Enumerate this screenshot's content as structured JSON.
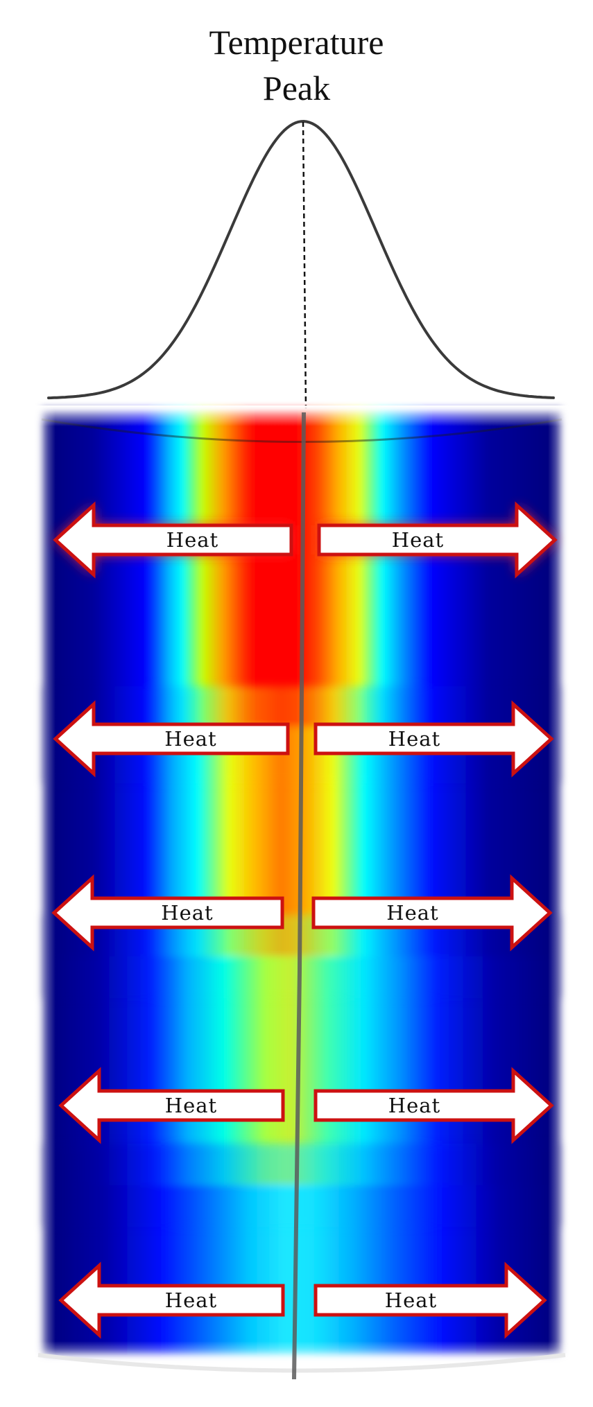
{
  "title": {
    "line1": "Temperature",
    "line2": "Peak"
  },
  "colors": {
    "background": "#ffffff",
    "curve": "#3a3a3a",
    "arrow_fill": "#ffffff",
    "arrow_outline": "#cc1111",
    "arrow_glow": "#ff2a2a",
    "rod": "#5a5a5a",
    "colormap": [
      "#00008a",
      "#0000ff",
      "#00e5ff",
      "#f5ff00",
      "#ff8c00",
      "#ff0000"
    ]
  },
  "arrows": {
    "left": [
      {
        "label": "Heat",
        "glow": true
      },
      {
        "label": "Heat",
        "glow": false
      },
      {
        "label": "Heat",
        "glow": false
      },
      {
        "label": "Heat",
        "glow": false
      },
      {
        "label": "Heat",
        "glow": false
      }
    ],
    "right": [
      {
        "label": "Heat",
        "glow": true
      },
      {
        "label": "Heat",
        "glow": false
      },
      {
        "label": "Heat",
        "glow": false
      },
      {
        "label": "Heat",
        "glow": false
      },
      {
        "label": "Heat",
        "glow": false
      }
    ]
  }
}
